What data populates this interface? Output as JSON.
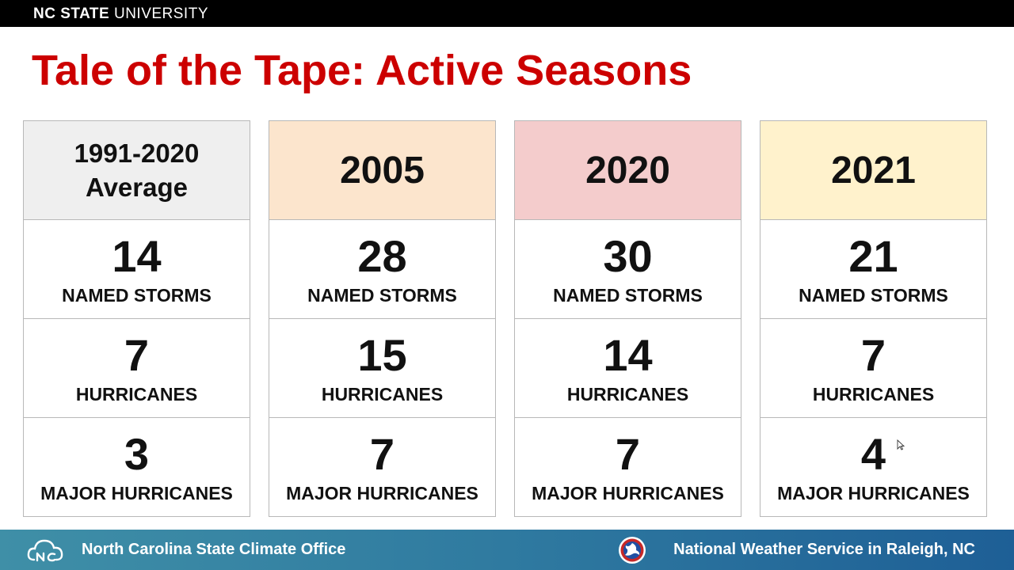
{
  "header": {
    "brand_bold": "NC STATE",
    "brand_light": "UNIVERSITY"
  },
  "slide": {
    "title": "Tale of the Tape: Active Seasons"
  },
  "columns": [
    {
      "head_line1": "1991-2020",
      "head_line2": "Average",
      "head_color": "#efefef",
      "named_storms": "14",
      "hurricanes": "7",
      "major_hurricanes": "3"
    },
    {
      "head": "2005",
      "head_color": "#fce5cd",
      "named_storms": "28",
      "hurricanes": "15",
      "major_hurricanes": "7"
    },
    {
      "head": "2020",
      "head_color": "#f4cccc",
      "named_storms": "30",
      "hurricanes": "14",
      "major_hurricanes": "7"
    },
    {
      "head": "2021",
      "head_color": "#fff2cc",
      "named_storms": "21",
      "hurricanes": "7",
      "major_hurricanes": "4"
    }
  ],
  "labels": {
    "named_storms": "NAMED STORMS",
    "hurricanes": "HURRICANES",
    "major_hurricanes": "MAJOR HURRICANES"
  },
  "footer": {
    "left_text": "North Carolina State Climate Office",
    "left_icon": "cloud-logo-icon",
    "right_text": "National Weather Service in Raleigh, NC",
    "right_icon": "nws-seal-icon"
  },
  "colors": {
    "title": "#cc0000",
    "topbar": "#000000",
    "footer_start": "#3f8fa7",
    "footer_end": "#1e5f96"
  }
}
